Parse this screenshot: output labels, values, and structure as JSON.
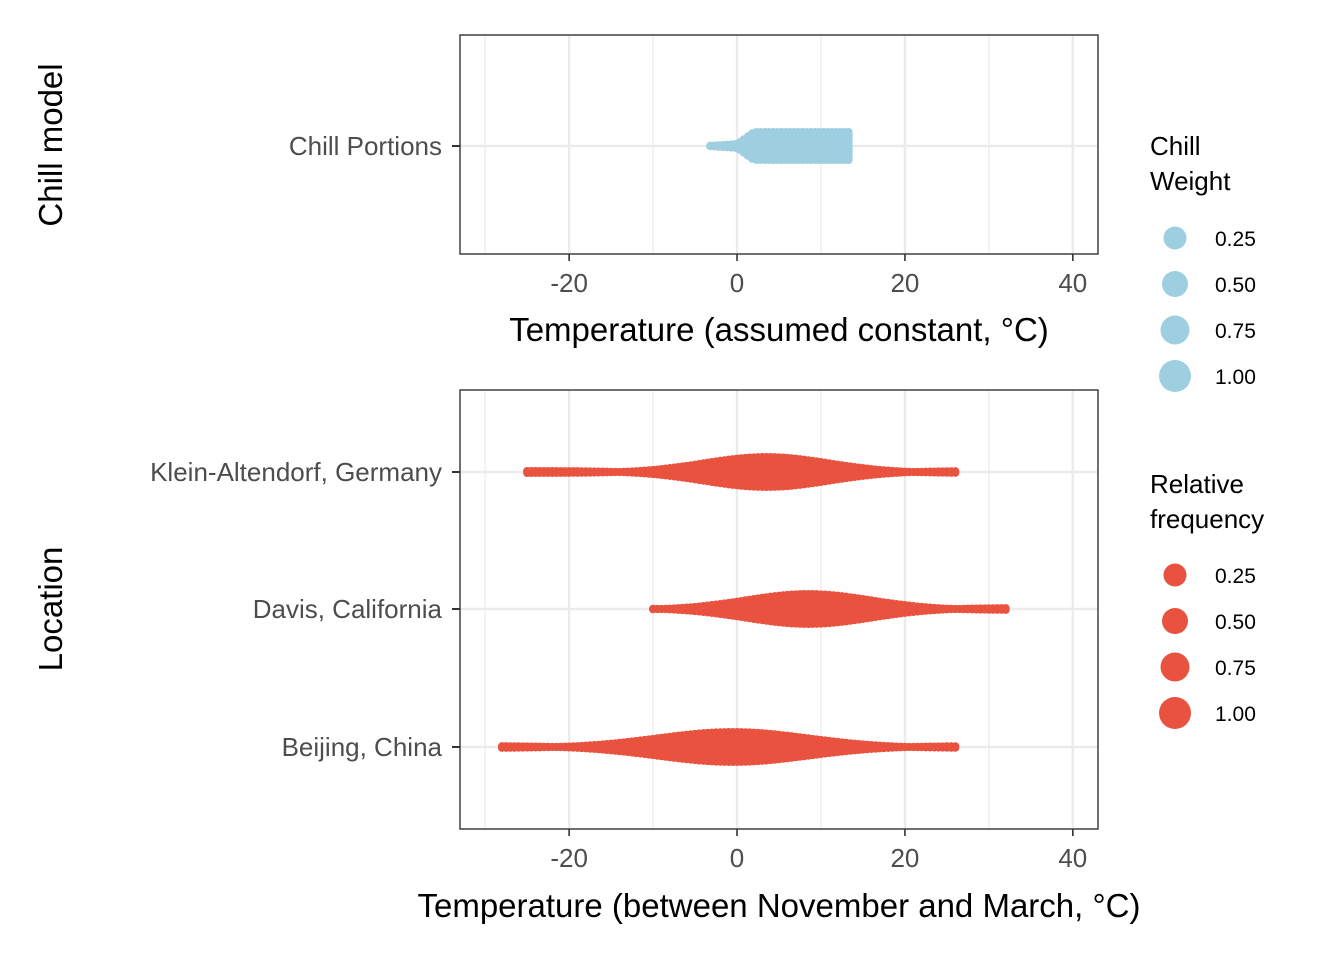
{
  "colors": {
    "chill": "#9ecfe0",
    "location": "#e8523e",
    "grid": "#ebebeb",
    "panel_border": "#333333",
    "tick_text": "#4d4d4d",
    "title_text": "#000000"
  },
  "chart_data": [
    {
      "type": "scatter",
      "subtype": "beeswarm",
      "xlabel": "Temperature (assumed constant, °C)",
      "ylabel": "Chill model",
      "xlim": [
        -33,
        43
      ],
      "xticks": [
        -20,
        0,
        20,
        40
      ],
      "tick_labels": [
        "-20",
        "0",
        "20",
        "40"
      ],
      "grid": true,
      "legend": {
        "title": [
          "Chill",
          "Weight"
        ],
        "labels": [
          "0.25",
          "0.50",
          "0.75",
          "1.00"
        ],
        "values": [
          0.25,
          0.5,
          0.75,
          1.0
        ],
        "placement": "right"
      },
      "categories": [
        "Chill Portions"
      ],
      "series": [
        {
          "category": "Chill Portions",
          "x_min": -3.2,
          "x_max": 13.7,
          "peak_x": 7.0,
          "peak_weight": 1.0
        }
      ]
    },
    {
      "type": "scatter",
      "subtype": "beeswarm",
      "xlabel": "Temperature (between November and March, °C)",
      "ylabel": "Location",
      "xlim": [
        -33,
        43
      ],
      "xticks": [
        -20,
        0,
        20,
        40
      ],
      "tick_labels": [
        "-20",
        "0",
        "20",
        "40"
      ],
      "grid": true,
      "legend": {
        "title": [
          "Relative",
          "frequency"
        ],
        "labels": [
          "0.25",
          "0.50",
          "0.75",
          "1.00"
        ],
        "values": [
          0.25,
          0.5,
          0.75,
          1.0
        ],
        "placement": "right"
      },
      "categories": [
        "Klein-Altendorf, Germany",
        "Davis, California",
        "Beijing, China"
      ],
      "series": [
        {
          "category": "Klein-Altendorf, Germany",
          "x_min": -25,
          "x_max": 26,
          "peak_x": 3.5,
          "spread": 7.5
        },
        {
          "category": "Davis, California",
          "x_min": -10,
          "x_max": 32,
          "peak_x": 8.5,
          "spread": 7.5
        },
        {
          "category": "Beijing, China",
          "x_min": -28,
          "x_max": 26,
          "peak_x": -0.5,
          "spread": 9.0
        }
      ]
    }
  ]
}
